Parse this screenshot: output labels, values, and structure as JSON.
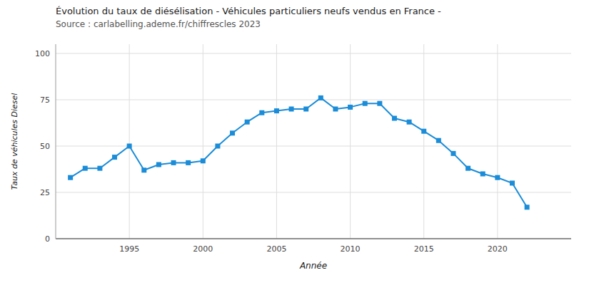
{
  "chart_data": {
    "type": "line",
    "title": "Évolution du taux de diésélisation - Véhicules particuliers neufs vendus en France -",
    "subtitle": "Source : carlabelling.ademe.fr/chiffrescles 2023",
    "x_label": "Année",
    "y_label": "Taux de véhicules Diesel",
    "x": [
      1991,
      1992,
      1993,
      1994,
      1995,
      1996,
      1997,
      1998,
      1999,
      2000,
      2001,
      2002,
      2003,
      2004,
      2005,
      2006,
      2007,
      2008,
      2009,
      2010,
      2011,
      2012,
      2013,
      2014,
      2015,
      2016,
      2017,
      2018,
      2019,
      2020,
      2021,
      2022
    ],
    "values": [
      33,
      38,
      38,
      44,
      50,
      37,
      40,
      41,
      41,
      42,
      50,
      57,
      63,
      68,
      69,
      70,
      70,
      76,
      70,
      71,
      73,
      73,
      65,
      63,
      58,
      53,
      46,
      38,
      35,
      33,
      30,
      17
    ],
    "color": "#1a8cd8",
    "marker": "square",
    "xlim": [
      1990,
      2025
    ],
    "xticks": [
      1995,
      2000,
      2005,
      2010,
      2015,
      2020
    ],
    "ylim": [
      0,
      105
    ],
    "yticks": [
      0,
      25,
      50,
      75,
      100
    ],
    "grid": true
  }
}
